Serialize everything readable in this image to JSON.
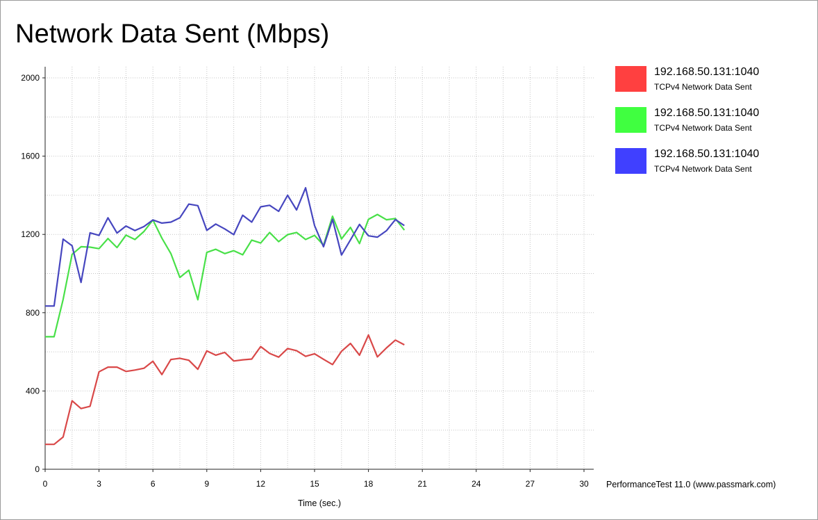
{
  "chart_data": {
    "type": "line",
    "title": "Network Data Sent (Mbps)",
    "xlabel": "Time (sec.)",
    "ylabel": "",
    "xlim": [
      0,
      30
    ],
    "ylim": [
      0,
      2000
    ],
    "x_ticks": [
      0,
      3,
      6,
      9,
      12,
      15,
      18,
      21,
      24,
      27,
      30
    ],
    "y_ticks": [
      0,
      400,
      800,
      1200,
      1600,
      2000
    ],
    "grid": true,
    "legend_position": "right",
    "series": [
      {
        "name": "192.168.50.131:1040",
        "subtitle": "TCPv4 Network Data Sent",
        "color": "#ff4040",
        "line_color": "#d94848",
        "points": [
          [
            0,
            127
          ],
          [
            0.5,
            127
          ],
          [
            1,
            165
          ],
          [
            1.5,
            350
          ],
          [
            2,
            310
          ],
          [
            2.5,
            322
          ],
          [
            3,
            498
          ],
          [
            3.5,
            522
          ],
          [
            4,
            522
          ],
          [
            4.5,
            500
          ],
          [
            5,
            507
          ],
          [
            5.5,
            516
          ],
          [
            6,
            552
          ],
          [
            6.5,
            484
          ],
          [
            7,
            561
          ],
          [
            7.5,
            567
          ],
          [
            8,
            557
          ],
          [
            8.5,
            511
          ],
          [
            9,
            605
          ],
          [
            9.5,
            583
          ],
          [
            10,
            597
          ],
          [
            10.5,
            553
          ],
          [
            11,
            559
          ],
          [
            11.5,
            563
          ],
          [
            12,
            627
          ],
          [
            12.5,
            592
          ],
          [
            13,
            573
          ],
          [
            13.5,
            617
          ],
          [
            14,
            606
          ],
          [
            14.5,
            577
          ],
          [
            15,
            590
          ],
          [
            15.5,
            562
          ],
          [
            16,
            535
          ],
          [
            16.5,
            603
          ],
          [
            17,
            643
          ],
          [
            17.5,
            583
          ],
          [
            18,
            686
          ],
          [
            18.5,
            574
          ],
          [
            19,
            620
          ],
          [
            19.5,
            660
          ],
          [
            20,
            636
          ]
        ]
      },
      {
        "name": "192.168.50.131:1040",
        "subtitle": "TCPv4 Network Data Sent",
        "color": "#40ff40",
        "line_color": "#48e048",
        "points": [
          [
            0,
            677
          ],
          [
            0.5,
            677
          ],
          [
            1,
            868
          ],
          [
            1.5,
            1098
          ],
          [
            2,
            1137
          ],
          [
            2.5,
            1135
          ],
          [
            3,
            1127
          ],
          [
            3.5,
            1179
          ],
          [
            4,
            1133
          ],
          [
            4.5,
            1196
          ],
          [
            5,
            1174
          ],
          [
            5.5,
            1215
          ],
          [
            6,
            1274
          ],
          [
            6.5,
            1181
          ],
          [
            7,
            1102
          ],
          [
            7.5,
            980
          ],
          [
            8,
            1017
          ],
          [
            8.5,
            866
          ],
          [
            9,
            1108
          ],
          [
            9.5,
            1124
          ],
          [
            10,
            1102
          ],
          [
            10.5,
            1117
          ],
          [
            11,
            1096
          ],
          [
            11.5,
            1171
          ],
          [
            12,
            1156
          ],
          [
            12.5,
            1210
          ],
          [
            13,
            1163
          ],
          [
            13.5,
            1199
          ],
          [
            14,
            1210
          ],
          [
            14.5,
            1174
          ],
          [
            15,
            1195
          ],
          [
            15.5,
            1145
          ],
          [
            16,
            1293
          ],
          [
            16.5,
            1177
          ],
          [
            17,
            1236
          ],
          [
            17.5,
            1153
          ],
          [
            18,
            1277
          ],
          [
            18.5,
            1302
          ],
          [
            19,
            1275
          ],
          [
            19.5,
            1281
          ],
          [
            20,
            1222
          ]
        ]
      },
      {
        "name": "192.168.50.131:1040",
        "subtitle": "TCPv4 Network Data Sent",
        "color": "#4040ff",
        "line_color": "#4646bf",
        "points": [
          [
            0,
            834
          ],
          [
            0.5,
            834
          ],
          [
            1,
            1176
          ],
          [
            1.5,
            1142
          ],
          [
            2,
            955
          ],
          [
            2.5,
            1208
          ],
          [
            3,
            1195
          ],
          [
            3.5,
            1285
          ],
          [
            4,
            1207
          ],
          [
            4.5,
            1243
          ],
          [
            5,
            1220
          ],
          [
            5.5,
            1240
          ],
          [
            6,
            1274
          ],
          [
            6.5,
            1258
          ],
          [
            7,
            1263
          ],
          [
            7.5,
            1285
          ],
          [
            8,
            1355
          ],
          [
            8.5,
            1347
          ],
          [
            9,
            1221
          ],
          [
            9.5,
            1253
          ],
          [
            10,
            1228
          ],
          [
            10.5,
            1199
          ],
          [
            11,
            1298
          ],
          [
            11.5,
            1263
          ],
          [
            12,
            1341
          ],
          [
            12.5,
            1349
          ],
          [
            13,
            1318
          ],
          [
            13.5,
            1400
          ],
          [
            14,
            1325
          ],
          [
            14.5,
            1438
          ],
          [
            15,
            1245
          ],
          [
            15.5,
            1137
          ],
          [
            16,
            1277
          ],
          [
            16.5,
            1095
          ],
          [
            17,
            1172
          ],
          [
            17.5,
            1251
          ],
          [
            18,
            1193
          ],
          [
            18.5,
            1186
          ],
          [
            19,
            1219
          ],
          [
            19.5,
            1276
          ],
          [
            20,
            1245
          ]
        ]
      }
    ]
  },
  "credit": "PerformanceTest 11.0 (www.passmark.com)"
}
